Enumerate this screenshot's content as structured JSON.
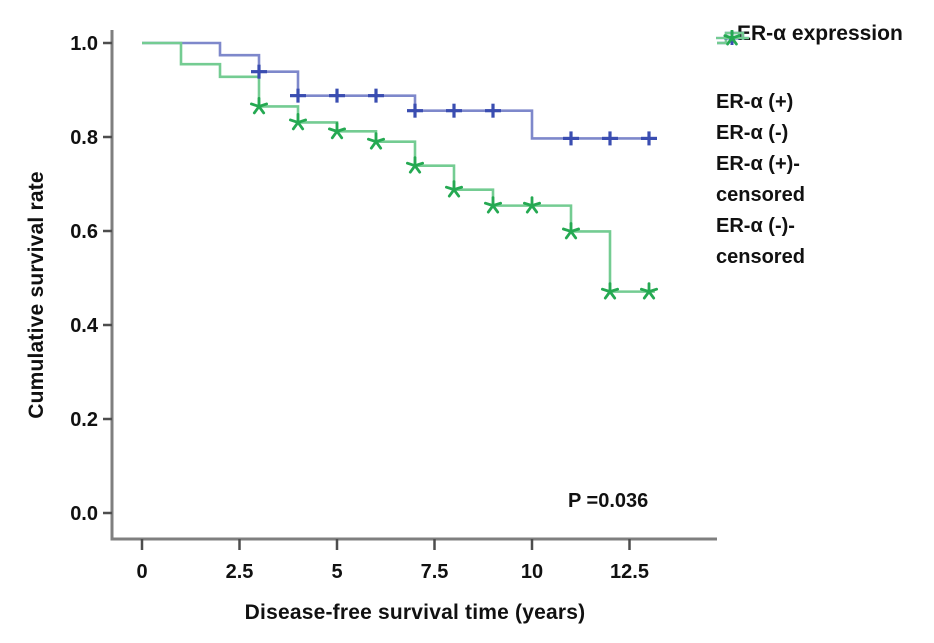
{
  "chart_data": {
    "type": "line",
    "subtype": "kaplan-meier-step-curves",
    "title": "",
    "xlabel": "Disease-free survival time (years)",
    "ylabel": "Cumulative survival rate",
    "annotation": "P =0.036",
    "xlim": [
      -0.77,
      14.74
    ],
    "ylim": [
      -0.06,
      1.09
    ],
    "grid": false,
    "legend_position": "right",
    "x_ticks": {
      "values": [
        0,
        2.5,
        5,
        7.5,
        10,
        12.5
      ],
      "labels": [
        "0",
        "2.5",
        "5",
        "7.5",
        "10",
        "12.5"
      ]
    },
    "y_ticks": {
      "values": [
        1.0,
        0.8,
        0.6,
        0.4,
        0.2,
        0.0
      ],
      "labels": [
        "1.0",
        "0.8",
        "0.6",
        "0.4",
        "0.2",
        "0.0"
      ]
    },
    "series": [
      {
        "name": "ER-α (+)",
        "line_color": "#7e88cb",
        "marker_color": "#3a4db1",
        "marker": "plus",
        "steps": [
          [
            0,
            1.0
          ],
          [
            2,
            0.974
          ],
          [
            3,
            0.939
          ],
          [
            4,
            0.888
          ],
          [
            7,
            0.856
          ],
          [
            10,
            0.797
          ]
        ],
        "end_time": 13.15,
        "censored": [
          [
            3,
            0.939
          ],
          [
            4,
            0.888
          ],
          [
            5,
            0.888
          ],
          [
            6,
            0.888
          ],
          [
            7,
            0.856
          ],
          [
            8,
            0.856
          ],
          [
            9,
            0.856
          ],
          [
            11,
            0.797
          ],
          [
            12,
            0.797
          ],
          [
            13,
            0.797
          ]
        ]
      },
      {
        "name": "ER-α (-)",
        "line_color": "#74cc92",
        "marker_color": "#25a952",
        "marker": "star",
        "steps": [
          [
            0,
            1.0
          ],
          [
            1,
            0.955
          ],
          [
            2,
            0.928
          ],
          [
            3,
            0.865
          ],
          [
            4,
            0.831
          ],
          [
            5,
            0.812
          ],
          [
            6,
            0.79
          ],
          [
            7,
            0.739
          ],
          [
            8,
            0.688
          ],
          [
            9,
            0.654
          ],
          [
            11,
            0.599
          ],
          [
            12,
            0.471
          ]
        ],
        "end_time": 13.15,
        "censored": [
          [
            3,
            0.865
          ],
          [
            4,
            0.831
          ],
          [
            5,
            0.812
          ],
          [
            6,
            0.79
          ],
          [
            7,
            0.739
          ],
          [
            8,
            0.688
          ],
          [
            9,
            0.654
          ],
          [
            10,
            0.654
          ],
          [
            11,
            0.599
          ],
          [
            12,
            0.471
          ],
          [
            13,
            0.471
          ]
        ]
      }
    ],
    "legend": {
      "title": "ER-α expression",
      "entries": [
        {
          "label": "ER-α (+)",
          "glyph": "step",
          "line_color": "#7e88cb",
          "marker_color": "#3a4db1"
        },
        {
          "label": "ER-α (-)",
          "glyph": "step",
          "line_color": "#74cc92",
          "marker_color": "#25a952"
        },
        {
          "label": "ER-α (+)-censored",
          "glyph": "plus",
          "line_color": "#7e88cb",
          "marker_color": "#3a4db1"
        },
        {
          "label": "ER-α (-)-censored",
          "glyph": "star",
          "line_color": "#74cc92",
          "marker_color": "#25a952"
        }
      ]
    },
    "colors": {
      "axis": "#7f7f7f",
      "tick": "#4d4d4d",
      "text": "#111111",
      "background": "#ffffff"
    }
  }
}
